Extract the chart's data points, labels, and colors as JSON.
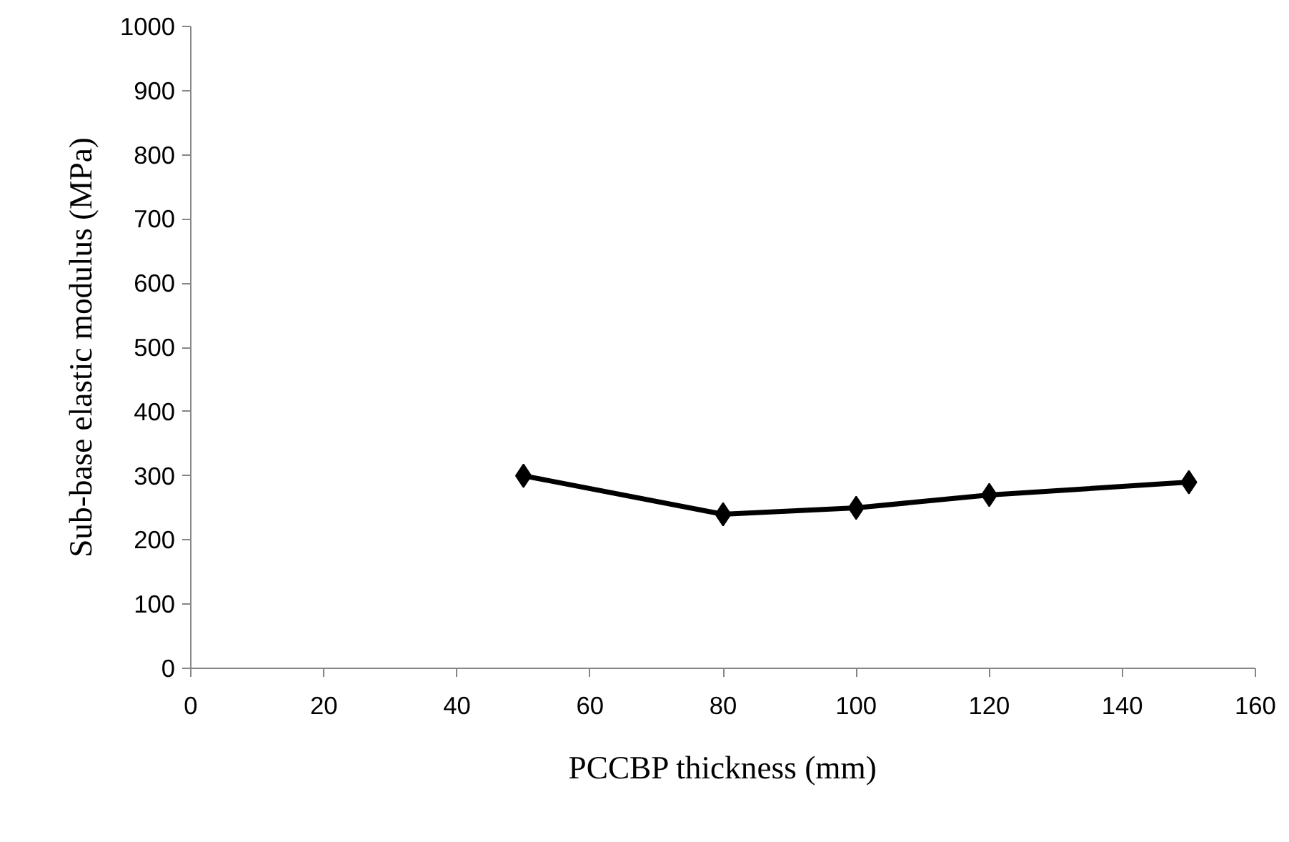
{
  "chart_data": {
    "type": "line",
    "xlabel": "PCCBP thickness (mm)",
    "ylabel": "Sub-base elastic modulus (MPa)",
    "x": [
      50,
      80,
      100,
      120,
      150
    ],
    "series": [
      {
        "color": "#000000",
        "values": [
          300,
          240,
          250,
          270,
          290
        ]
      }
    ],
    "xlim": [
      0,
      160
    ],
    "xticks": [
      0,
      20,
      40,
      60,
      80,
      100,
      120,
      140,
      160
    ],
    "ylim": [
      0,
      1000
    ],
    "yticks": [
      0,
      100,
      200,
      300,
      400,
      500,
      600,
      700,
      800,
      900,
      1000
    ],
    "grid": false,
    "marker": "diamond",
    "line_style": "solid"
  }
}
